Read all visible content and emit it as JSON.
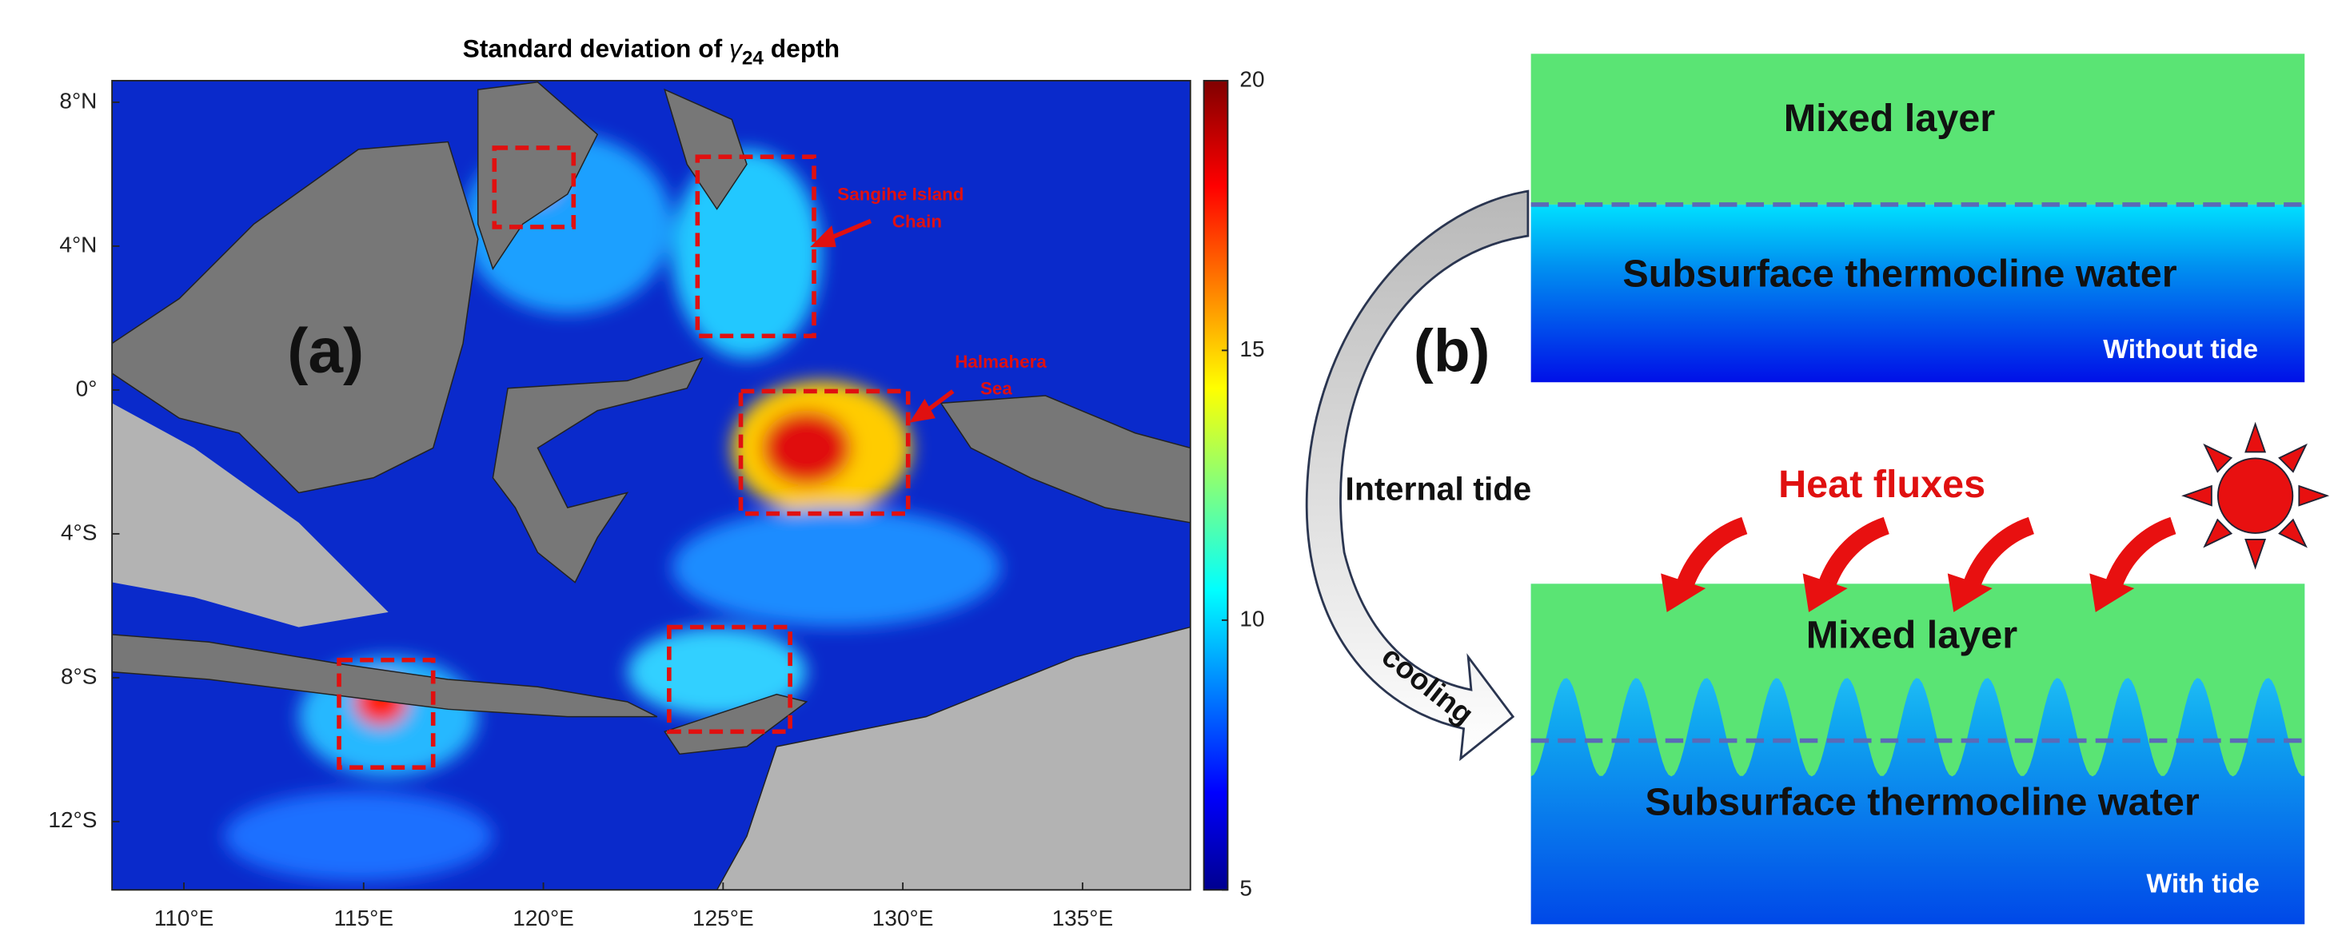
{
  "map": {
    "title": "Standard deviation of",
    "symbol": "γ",
    "subscript": "24",
    "title_end": "depth",
    "xlim": [
      108,
      138
    ],
    "ylim": [
      -13.9,
      8.6
    ],
    "xticks": [
      {
        "value": 110,
        "label": "110°E"
      },
      {
        "value": 115,
        "label": "115°E"
      },
      {
        "value": 120,
        "label": "120°E"
      },
      {
        "value": 125,
        "label": "125°E"
      },
      {
        "value": 130,
        "label": "130°E"
      },
      {
        "value": 135,
        "label": "135°E"
      }
    ],
    "yticks": [
      {
        "value": 8,
        "label": "8°N"
      },
      {
        "value": 4,
        "label": "4°N"
      },
      {
        "value": 0,
        "label": "0°"
      },
      {
        "value": -4,
        "label": "4°S"
      },
      {
        "value": -8,
        "label": "8°S"
      },
      {
        "value": -12,
        "label": "12°S"
      }
    ],
    "colorbar": {
      "lim": [
        5,
        20
      ],
      "ticks": [
        5,
        10,
        15,
        20
      ]
    },
    "panel_label": "(a)",
    "annotations": [
      [
        "Sangihe Island",
        "Chain"
      ],
      [
        "Halmahera",
        "Sea"
      ]
    ]
  },
  "diagram": {
    "panel_label": "(b)",
    "top": {
      "upper": "Mixed layer",
      "lower": "Subsurface thermocline water",
      "tag": "Without tide"
    },
    "bottom": {
      "upper": "Mixed layer",
      "lower": "Subsurface thermocline water",
      "tag": "With tide"
    },
    "heat": "Heat fluxes",
    "internal": "Internal tide",
    "cooling": "cooling"
  }
}
